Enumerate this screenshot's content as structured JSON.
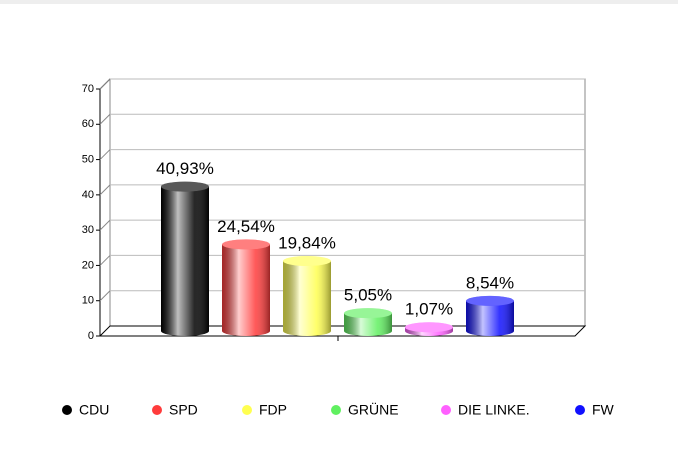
{
  "chart_data": {
    "type": "bar",
    "categories": [
      "CDU",
      "SPD",
      "FDP",
      "GRÜNE",
      "DIE LINKE.",
      "FW"
    ],
    "values": [
      40.93,
      24.54,
      19.84,
      5.05,
      1.07,
      8.54
    ],
    "value_labels": [
      "40,93%",
      "24,54%",
      "19,84%",
      "5,05%",
      "1,07%",
      "8,54%"
    ],
    "colors": [
      "#000000",
      "#ff3b3b",
      "#ffff50",
      "#60f060",
      "#ff60ff",
      "#1010ff"
    ],
    "ylim": [
      0,
      70
    ],
    "yticks": [
      0,
      10,
      20,
      30,
      40,
      50,
      60,
      70
    ],
    "grid": true
  }
}
